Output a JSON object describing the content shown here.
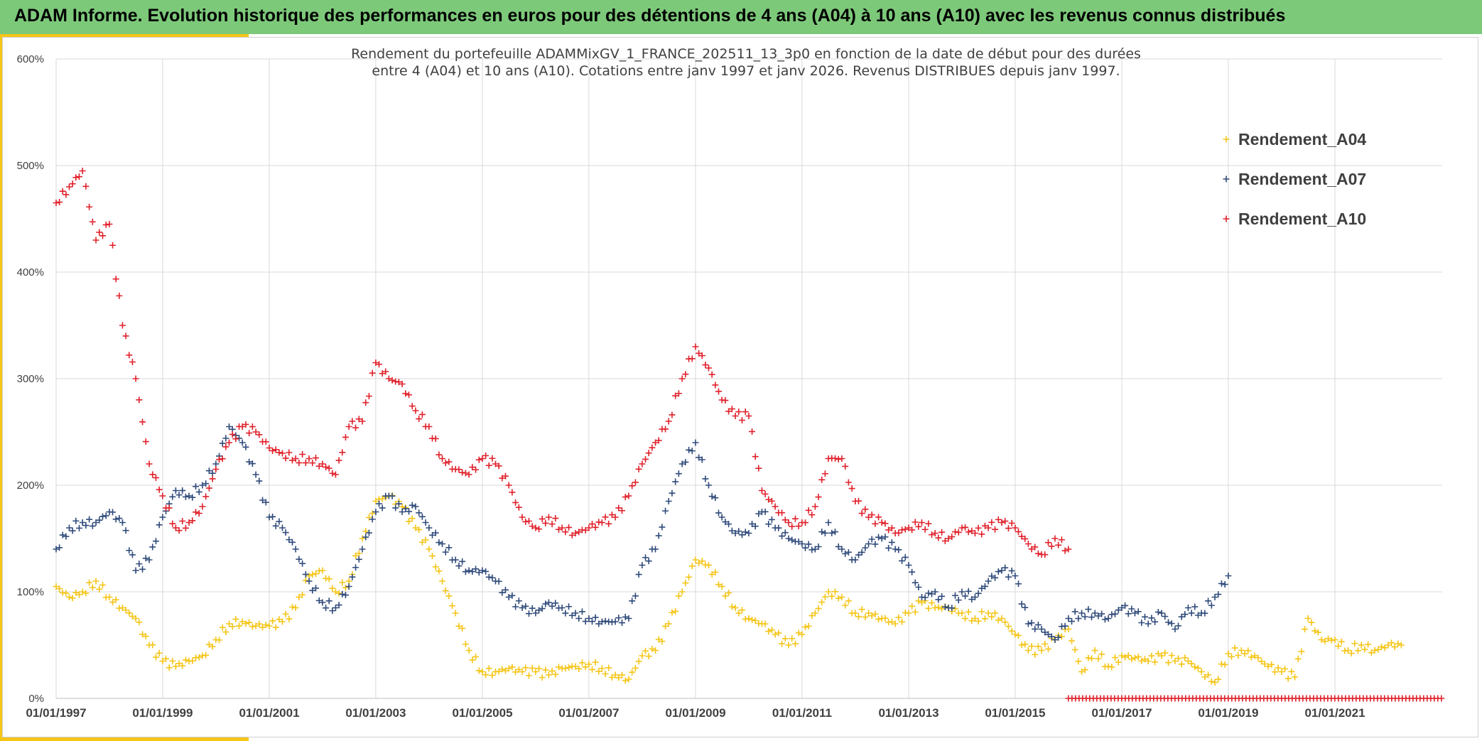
{
  "header": {
    "title": "ADAM Informe. Evolution historique des performances en euros pour des détentions de 4 ans (A04) à 10 ans (A10) avec les revenus connus distribués"
  },
  "colors": {
    "header_bg": "#7dc97a",
    "accent": "#f5c518",
    "series_A04": "#f5c518",
    "series_A07": "#2f4a7a",
    "series_A10": "#e0202a"
  },
  "chart_data": {
    "type": "scatter",
    "title_lines": [
      "Rendement du portefeuille ADAMMixGV_1_FRANCE_202511_13_3p0  en fonction de la date de début pour des durées",
      "entre 4 (A04) et 10 ans (A10). Cotations entre janv 1997 et janv 2026. Revenus DISTRIBUES depuis janv 1997."
    ],
    "xlabel": "",
    "ylabel": "",
    "x_type": "date",
    "xlim": [
      "1997-01-01",
      "2023-01-01"
    ],
    "ylim": [
      0,
      600
    ],
    "x_ticks": [
      "01/01/1997",
      "01/01/1999",
      "01/01/2001",
      "01/01/2003",
      "01/01/2005",
      "01/01/2007",
      "01/01/2009",
      "01/01/2011",
      "01/01/2013",
      "01/01/2015",
      "01/01/2017",
      "01/01/2019",
      "01/01/2021"
    ],
    "y_ticks": [
      "0%",
      "100%",
      "200%",
      "300%",
      "400%",
      "500%",
      "600%"
    ],
    "grid": true,
    "legend_position": "top-right",
    "marker": "+",
    "series": [
      {
        "name": "Rendement_A04",
        "color": "#f5c518",
        "points": [
          [
            "1997-01-01",
            105
          ],
          [
            "1997-04-01",
            95
          ],
          [
            "1997-07-01",
            100
          ],
          [
            "1997-10-01",
            110
          ],
          [
            "1998-01-01",
            95
          ],
          [
            "1998-04-01",
            85
          ],
          [
            "1998-07-01",
            75
          ],
          [
            "1998-10-01",
            50
          ],
          [
            "1999-01-01",
            35
          ],
          [
            "1999-04-01",
            30
          ],
          [
            "1999-07-01",
            35
          ],
          [
            "1999-10-01",
            40
          ],
          [
            "2000-01-01",
            55
          ],
          [
            "2000-04-01",
            70
          ],
          [
            "2000-07-01",
            72
          ],
          [
            "2000-10-01",
            68
          ],
          [
            "2001-01-01",
            68
          ],
          [
            "2001-04-01",
            72
          ],
          [
            "2001-07-01",
            85
          ],
          [
            "2001-10-01",
            115
          ],
          [
            "2002-01-01",
            120
          ],
          [
            "2002-04-01",
            100
          ],
          [
            "2002-07-01",
            110
          ],
          [
            "2002-10-01",
            150
          ],
          [
            "2003-01-01",
            185
          ],
          [
            "2003-04-01",
            190
          ],
          [
            "2003-07-01",
            180
          ],
          [
            "2003-10-01",
            160
          ],
          [
            "2004-01-01",
            140
          ],
          [
            "2004-04-01",
            110
          ],
          [
            "2004-07-01",
            80
          ],
          [
            "2004-10-01",
            45
          ],
          [
            "2005-01-01",
            25
          ],
          [
            "2005-04-01",
            25
          ],
          [
            "2005-07-01",
            28
          ],
          [
            "2005-10-01",
            25
          ],
          [
            "2006-01-01",
            25
          ],
          [
            "2006-04-01",
            22
          ],
          [
            "2006-07-01",
            28
          ],
          [
            "2006-10-01",
            30
          ],
          [
            "2007-01-01",
            32
          ],
          [
            "2007-04-01",
            28
          ],
          [
            "2007-07-01",
            22
          ],
          [
            "2007-10-01",
            18
          ],
          [
            "2008-01-01",
            40
          ],
          [
            "2008-04-01",
            45
          ],
          [
            "2008-07-01",
            70
          ],
          [
            "2008-10-01",
            100
          ],
          [
            "2009-01-01",
            130
          ],
          [
            "2009-04-01",
            125
          ],
          [
            "2009-07-01",
            105
          ],
          [
            "2009-10-01",
            85
          ],
          [
            "2010-01-01",
            75
          ],
          [
            "2010-04-01",
            70
          ],
          [
            "2010-07-01",
            60
          ],
          [
            "2010-10-01",
            50
          ],
          [
            "2011-01-01",
            60
          ],
          [
            "2011-04-01",
            80
          ],
          [
            "2011-07-01",
            100
          ],
          [
            "2011-10-01",
            95
          ],
          [
            "2012-01-01",
            80
          ],
          [
            "2012-04-01",
            80
          ],
          [
            "2012-07-01",
            75
          ],
          [
            "2012-10-01",
            70
          ],
          [
            "2013-01-01",
            80
          ],
          [
            "2013-04-01",
            90
          ],
          [
            "2013-07-01",
            85
          ],
          [
            "2013-10-01",
            85
          ],
          [
            "2014-01-01",
            80
          ],
          [
            "2014-04-01",
            75
          ],
          [
            "2014-07-01",
            80
          ],
          [
            "2014-10-01",
            75
          ],
          [
            "2015-01-01",
            60
          ],
          [
            "2015-04-01",
            45
          ],
          [
            "2015-07-01",
            45
          ],
          [
            "2015-10-01",
            55
          ],
          [
            "2016-01-01",
            65
          ],
          [
            "2016-04-01",
            25
          ],
          [
            "2016-07-01",
            45
          ],
          [
            "2016-10-01",
            30
          ],
          [
            "2017-01-01",
            40
          ],
          [
            "2017-04-01",
            38
          ],
          [
            "2017-07-01",
            35
          ],
          [
            "2017-10-01",
            40
          ],
          [
            "2018-01-01",
            35
          ],
          [
            "2018-04-01",
            35
          ],
          [
            "2018-07-01",
            25
          ],
          [
            "2018-10-01",
            15
          ],
          [
            "2019-01-01",
            42
          ],
          [
            "2019-04-01",
            45
          ],
          [
            "2019-07-01",
            40
          ],
          [
            "2019-10-01",
            30
          ],
          [
            "2020-01-01",
            25
          ],
          [
            "2020-04-01",
            20
          ],
          [
            "2020-07-01",
            75
          ],
          [
            "2020-10-01",
            55
          ],
          [
            "2021-01-01",
            55
          ],
          [
            "2021-04-01",
            45
          ],
          [
            "2021-07-01",
            50
          ],
          [
            "2021-10-01",
            45
          ],
          [
            "2022-01-01",
            50
          ],
          [
            "2022-04-01",
            50
          ]
        ]
      },
      {
        "name": "Rendement_A07",
        "color": "#2f4a7a",
        "points": [
          [
            "1997-01-01",
            140
          ],
          [
            "1997-04-01",
            160
          ],
          [
            "1997-07-01",
            165
          ],
          [
            "1997-10-01",
            165
          ],
          [
            "1998-01-01",
            175
          ],
          [
            "1998-04-01",
            165
          ],
          [
            "1998-07-01",
            120
          ],
          [
            "1998-10-01",
            130
          ],
          [
            "1999-01-01",
            170
          ],
          [
            "1999-04-01",
            195
          ],
          [
            "1999-07-01",
            190
          ],
          [
            "1999-10-01",
            200
          ],
          [
            "2000-01-01",
            220
          ],
          [
            "2000-04-01",
            255
          ],
          [
            "2000-07-01",
            240
          ],
          [
            "2000-10-01",
            210
          ],
          [
            "2001-01-01",
            170
          ],
          [
            "2001-04-01",
            160
          ],
          [
            "2001-07-01",
            140
          ],
          [
            "2001-10-01",
            110
          ],
          [
            "2002-01-01",
            90
          ],
          [
            "2002-04-01",
            85
          ],
          [
            "2002-07-01",
            105
          ],
          [
            "2002-10-01",
            140
          ],
          [
            "2003-01-01",
            175
          ],
          [
            "2003-04-01",
            190
          ],
          [
            "2003-07-01",
            175
          ],
          [
            "2003-10-01",
            180
          ],
          [
            "2004-01-01",
            160
          ],
          [
            "2004-04-01",
            145
          ],
          [
            "2004-07-01",
            130
          ],
          [
            "2004-10-01",
            120
          ],
          [
            "2005-01-01",
            120
          ],
          [
            "2005-04-01",
            110
          ],
          [
            "2005-07-01",
            95
          ],
          [
            "2005-10-01",
            85
          ],
          [
            "2006-01-01",
            80
          ],
          [
            "2006-04-01",
            90
          ],
          [
            "2006-07-01",
            85
          ],
          [
            "2006-10-01",
            80
          ],
          [
            "2007-01-01",
            75
          ],
          [
            "2007-04-01",
            72
          ],
          [
            "2007-07-01",
            72
          ],
          [
            "2007-10-01",
            75
          ],
          [
            "2008-01-01",
            125
          ],
          [
            "2008-04-01",
            140
          ],
          [
            "2008-07-01",
            185
          ],
          [
            "2008-10-01",
            220
          ],
          [
            "2009-01-01",
            240
          ],
          [
            "2009-04-01",
            200
          ],
          [
            "2009-07-01",
            170
          ],
          [
            "2009-10-01",
            155
          ],
          [
            "2010-01-01",
            155
          ],
          [
            "2010-04-01",
            175
          ],
          [
            "2010-07-01",
            160
          ],
          [
            "2010-10-01",
            150
          ],
          [
            "2011-01-01",
            145
          ],
          [
            "2011-04-01",
            140
          ],
          [
            "2011-07-01",
            165
          ],
          [
            "2011-10-01",
            140
          ],
          [
            "2012-01-01",
            130
          ],
          [
            "2012-04-01",
            145
          ],
          [
            "2012-07-01",
            150
          ],
          [
            "2012-10-01",
            140
          ],
          [
            "2013-01-01",
            125
          ],
          [
            "2013-04-01",
            95
          ],
          [
            "2013-07-01",
            100
          ],
          [
            "2013-10-01",
            85
          ],
          [
            "2014-01-01",
            100
          ],
          [
            "2014-04-01",
            95
          ],
          [
            "2014-07-01",
            110
          ],
          [
            "2014-10-01",
            120
          ],
          [
            "2015-01-01",
            115
          ],
          [
            "2015-04-01",
            70
          ],
          [
            "2015-07-01",
            65
          ],
          [
            "2015-10-01",
            55
          ],
          [
            "2016-01-01",
            75
          ],
          [
            "2016-04-01",
            80
          ],
          [
            "2016-07-01",
            80
          ],
          [
            "2016-10-01",
            75
          ],
          [
            "2017-01-01",
            85
          ],
          [
            "2017-04-01",
            80
          ],
          [
            "2017-07-01",
            70
          ],
          [
            "2017-10-01",
            80
          ],
          [
            "2018-01-01",
            65
          ],
          [
            "2018-04-01",
            85
          ],
          [
            "2018-07-01",
            80
          ],
          [
            "2018-10-01",
            95
          ],
          [
            "2019-01-01",
            115
          ]
        ]
      },
      {
        "name": "Rendement_A10",
        "color": "#e0202a",
        "points": [
          [
            "1997-01-01",
            465
          ],
          [
            "1997-04-01",
            480
          ],
          [
            "1997-07-01",
            495
          ],
          [
            "1997-10-01",
            430
          ],
          [
            "1998-01-01",
            445
          ],
          [
            "1998-04-01",
            350
          ],
          [
            "1998-07-01",
            300
          ],
          [
            "1998-10-01",
            220
          ],
          [
            "1999-01-01",
            190
          ],
          [
            "1999-04-01",
            160
          ],
          [
            "1999-07-01",
            165
          ],
          [
            "1999-10-01",
            180
          ],
          [
            "2000-01-01",
            215
          ],
          [
            "2000-04-01",
            240
          ],
          [
            "2000-07-01",
            255
          ],
          [
            "2000-10-01",
            250
          ],
          [
            "2001-01-01",
            235
          ],
          [
            "2001-04-01",
            230
          ],
          [
            "2001-07-01",
            225
          ],
          [
            "2001-10-01",
            225
          ],
          [
            "2002-01-01",
            220
          ],
          [
            "2002-04-01",
            210
          ],
          [
            "2002-07-01",
            255
          ],
          [
            "2002-10-01",
            260
          ],
          [
            "2003-01-01",
            315
          ],
          [
            "2003-04-01",
            300
          ],
          [
            "2003-07-01",
            295
          ],
          [
            "2003-10-01",
            270
          ],
          [
            "2004-01-01",
            255
          ],
          [
            "2004-04-01",
            225
          ],
          [
            "2004-07-01",
            215
          ],
          [
            "2004-10-01",
            210
          ],
          [
            "2005-01-01",
            225
          ],
          [
            "2005-04-01",
            220
          ],
          [
            "2005-07-01",
            200
          ],
          [
            "2005-10-01",
            170
          ],
          [
            "2006-01-01",
            160
          ],
          [
            "2006-04-01",
            170
          ],
          [
            "2006-07-01",
            160
          ],
          [
            "2006-10-01",
            155
          ],
          [
            "2007-01-01",
            160
          ],
          [
            "2007-04-01",
            165
          ],
          [
            "2007-07-01",
            170
          ],
          [
            "2007-10-01",
            190
          ],
          [
            "2008-01-01",
            220
          ],
          [
            "2008-04-01",
            240
          ],
          [
            "2008-07-01",
            260
          ],
          [
            "2008-10-01",
            300
          ],
          [
            "2009-01-01",
            330
          ],
          [
            "2009-04-01",
            310
          ],
          [
            "2009-07-01",
            280
          ],
          [
            "2009-10-01",
            265
          ],
          [
            "2010-01-01",
            265
          ],
          [
            "2010-04-01",
            195
          ],
          [
            "2010-07-01",
            180
          ],
          [
            "2010-10-01",
            165
          ],
          [
            "2011-01-01",
            165
          ],
          [
            "2011-04-01",
            180
          ],
          [
            "2011-07-01",
            225
          ],
          [
            "2011-10-01",
            225
          ],
          [
            "2012-01-01",
            185
          ],
          [
            "2012-04-01",
            170
          ],
          [
            "2012-07-01",
            165
          ],
          [
            "2012-10-01",
            155
          ],
          [
            "2013-01-01",
            160
          ],
          [
            "2013-04-01",
            165
          ],
          [
            "2013-07-01",
            155
          ],
          [
            "2013-10-01",
            150
          ],
          [
            "2014-01-01",
            160
          ],
          [
            "2014-04-01",
            155
          ],
          [
            "2014-07-01",
            160
          ],
          [
            "2014-10-01",
            165
          ],
          [
            "2015-01-01",
            160
          ],
          [
            "2015-04-01",
            145
          ],
          [
            "2015-07-01",
            135
          ],
          [
            "2015-10-01",
            150
          ],
          [
            "2016-01-01",
            140
          ]
        ]
      }
    ]
  }
}
